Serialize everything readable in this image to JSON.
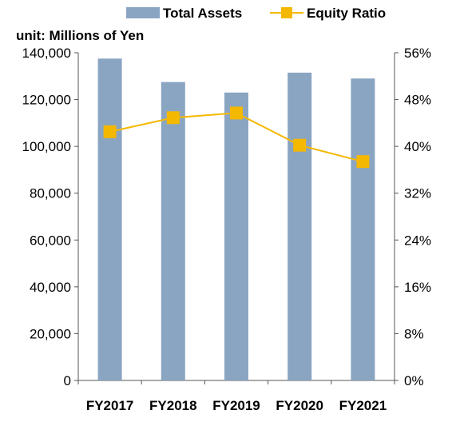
{
  "chart_data": {
    "type": "bar",
    "unit_label": "unit: Millions of Yen",
    "categories": [
      "FY2017",
      "FY2018",
      "FY2019",
      "FY2020",
      "FY2021"
    ],
    "series": [
      {
        "name": "Total Assets",
        "type": "bar",
        "axis": "left",
        "color": "#8aa5c2",
        "values": [
          137500,
          127500,
          123000,
          131500,
          129000
        ]
      },
      {
        "name": "Equity Ratio",
        "type": "line",
        "axis": "right",
        "color": "#f5b800",
        "values": [
          42.5,
          44.9,
          45.7,
          40.2,
          37.4
        ]
      }
    ],
    "y_left": {
      "min": 0,
      "max": 140000,
      "ticks": [
        "0",
        "20,000",
        "40,000",
        "60,000",
        "80,000",
        "100,000",
        "120,000",
        "140,000"
      ]
    },
    "y_right": {
      "min": 0,
      "max": 56,
      "ticks": [
        "0%",
        "8%",
        "16%",
        "24%",
        "32%",
        "40%",
        "48%",
        "56%"
      ]
    },
    "legend_position": "top",
    "grid": false
  }
}
